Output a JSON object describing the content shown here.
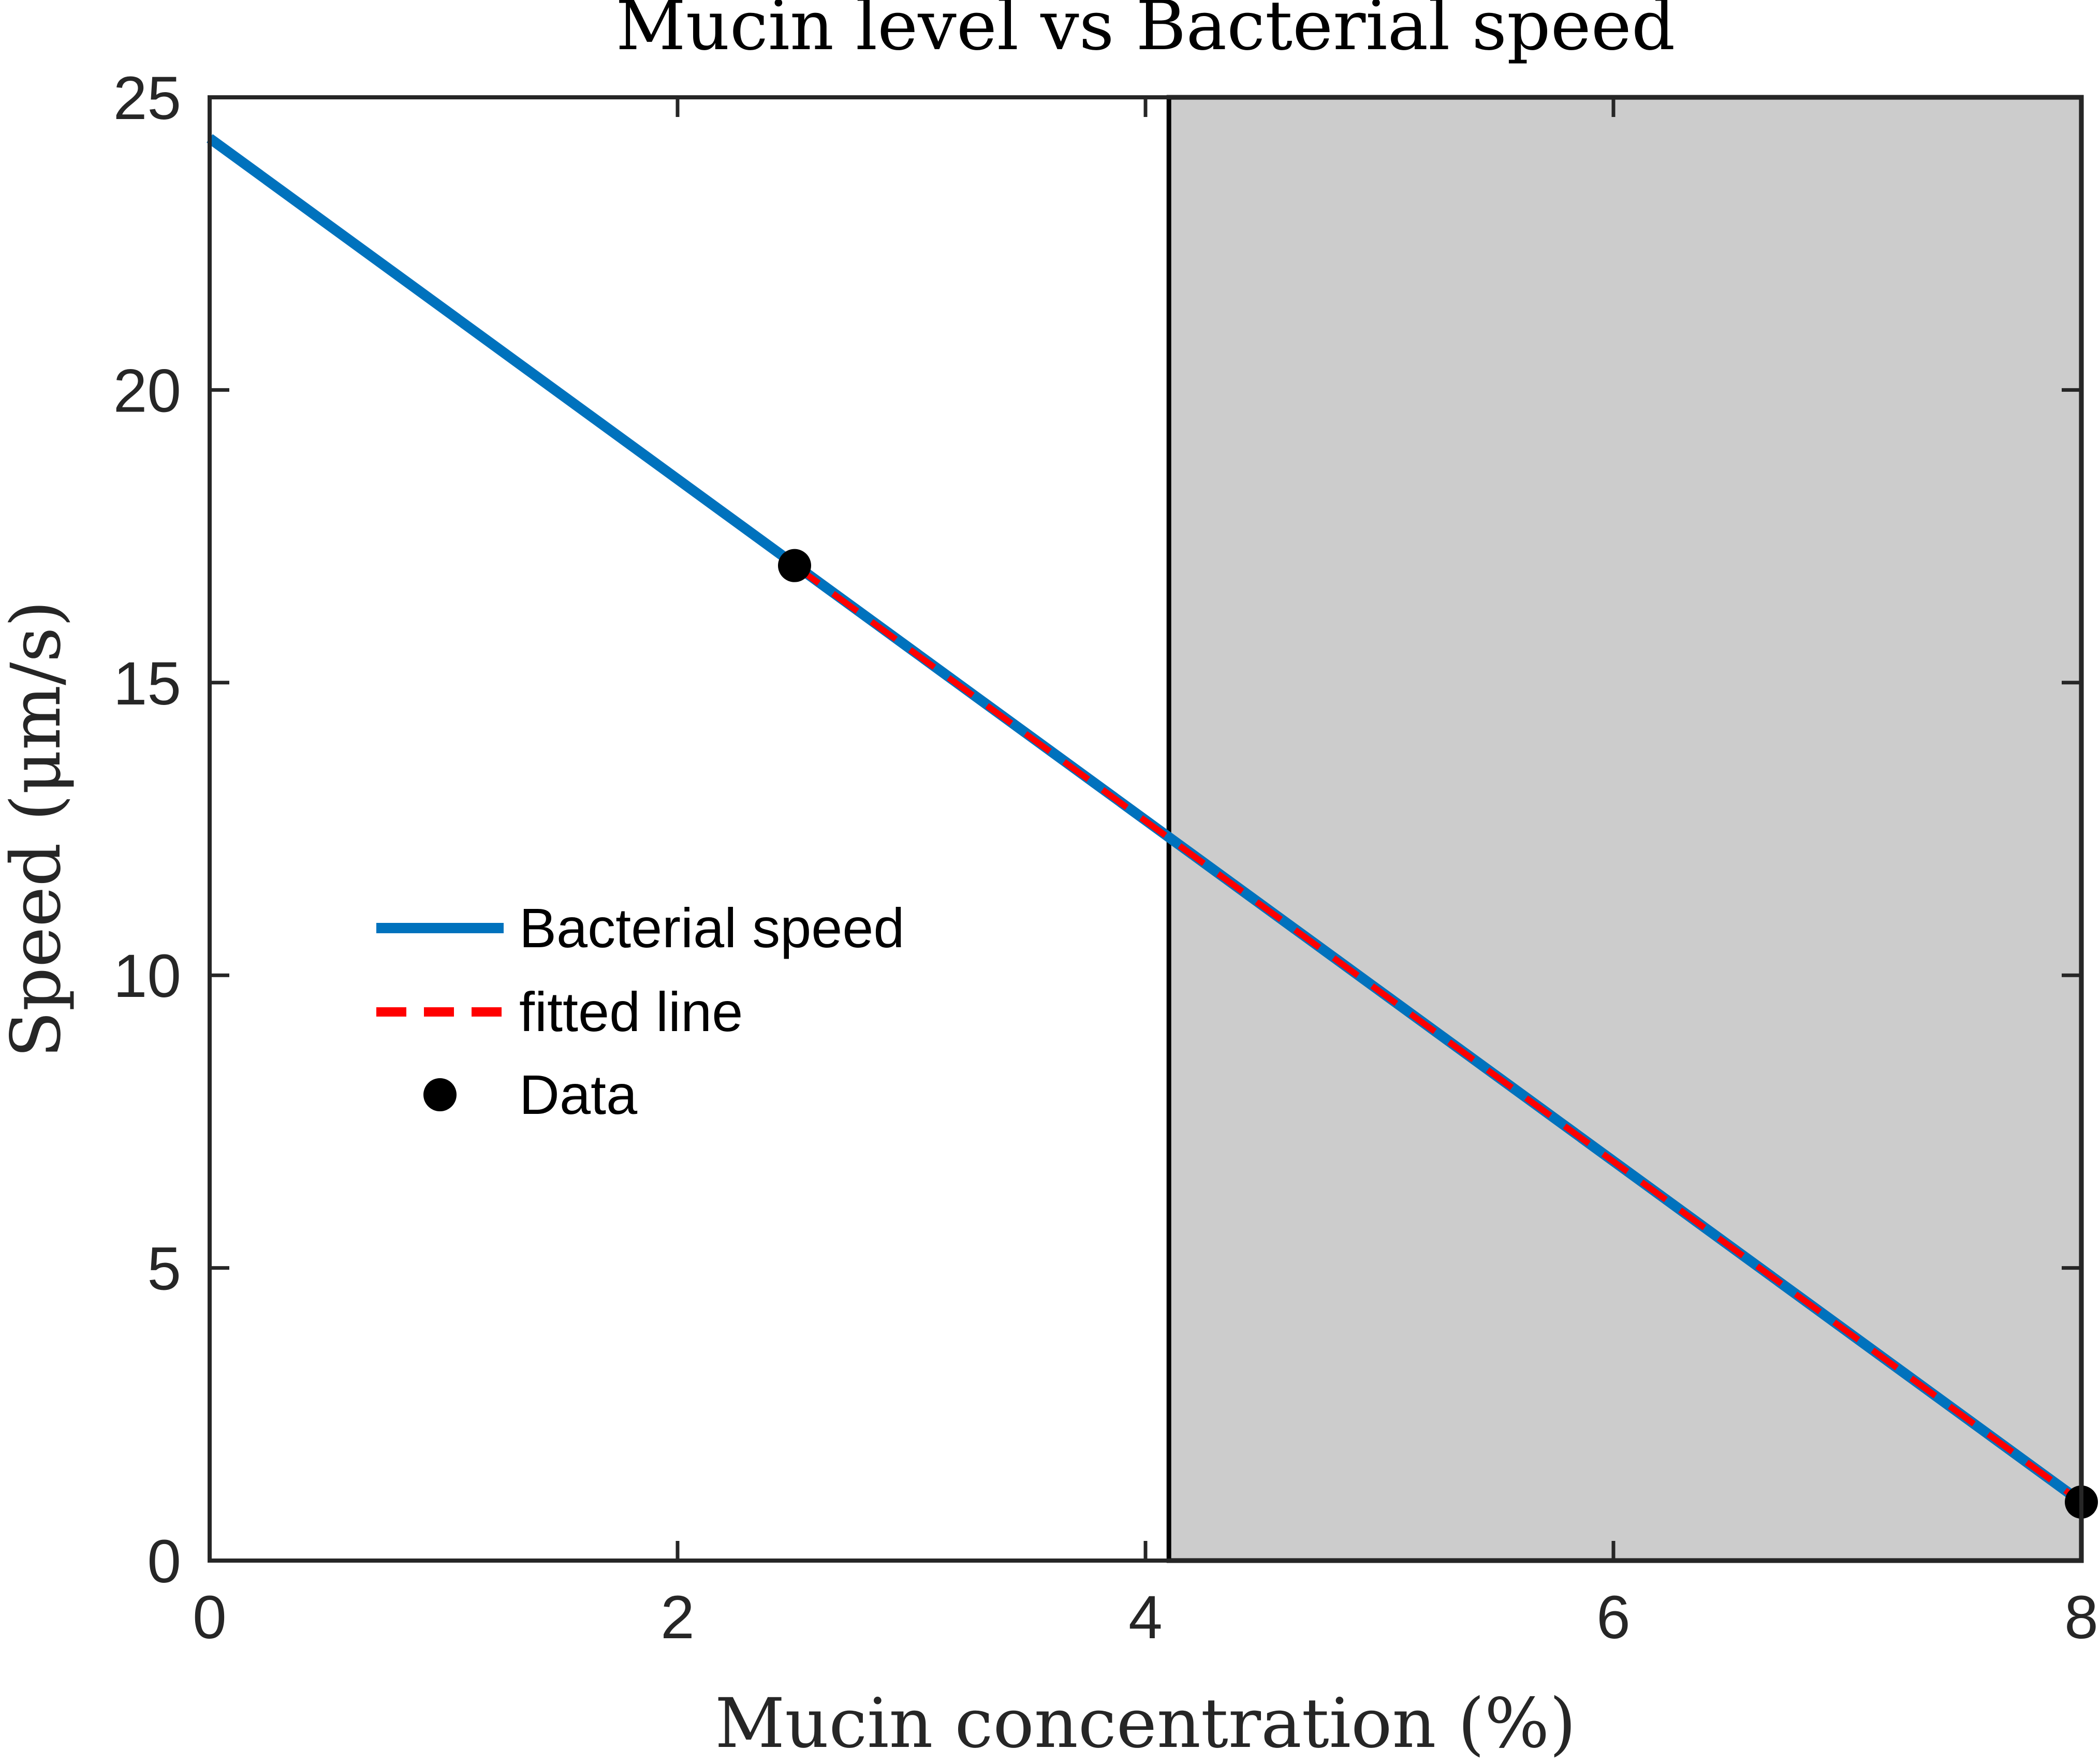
{
  "chart_data": {
    "type": "line",
    "title": "Mucin level vs Bacterial speed",
    "xlabel": "Mucin concentration (%)",
    "ylabel": "Speed (μm/s)",
    "xlim": [
      0,
      8
    ],
    "ylim": [
      0,
      25
    ],
    "xticks": [
      0,
      2,
      4,
      6,
      8
    ],
    "yticks": [
      0,
      5,
      10,
      15,
      20,
      25
    ],
    "grid": false,
    "legend_position": "middle-left",
    "shaded_region": {
      "x": [
        4.1,
        8
      ],
      "color": "#cccccc"
    },
    "series": [
      {
        "name": "Bacterial speed",
        "style": "solid",
        "color": "#0072bd",
        "x": [
          0,
          8
        ],
        "y": [
          24.3,
          1.0
        ]
      },
      {
        "name": "fitted line",
        "style": "dashed",
        "color": "#ff0000",
        "x": [
          2.5,
          8
        ],
        "y": [
          17.0,
          1.0
        ]
      },
      {
        "name": "Data",
        "style": "markers",
        "color": "#000000",
        "x": [
          2.5,
          8
        ],
        "y": [
          17.0,
          1.0
        ]
      }
    ]
  }
}
